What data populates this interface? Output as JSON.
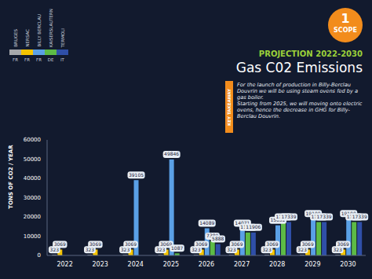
{
  "chart_data": {
    "type": "bar",
    "badge": {
      "label": "SCOPE",
      "number": "1"
    },
    "subtitle": "PROJECTION 2022-2030",
    "title": "Gas C02 Emissions",
    "annotation_tag": "KEY TAKEAWAY",
    "annotation": [
      "For the launch of production in Billy-Berclau Douvrin we will be using steam ovens fed by a gas boiler.",
      "Starting from 2025, we will moving onto electric ovens, hence the decrease in GHG for Billy-Berclau Douvrin."
    ],
    "y_label": "TONS OF CO2 / YEAR",
    "categories": [
      "2022",
      "2023",
      "2024",
      "2025",
      "2026",
      "2027",
      "2028",
      "2029",
      "2030"
    ],
    "series": [
      {
        "name": "BRUGES",
        "country": "FR",
        "color": "#a7a9ac",
        "values": [
          323,
          323,
          323,
          323,
          323,
          323,
          323,
          323,
          323
        ]
      },
      {
        "name": "NERSAC",
        "country": "FR",
        "color": "#f5c400",
        "values": [
          3069,
          3069,
          3069,
          3069,
          3069,
          3069,
          3069,
          3069,
          3069
        ]
      },
      {
        "name": "BILLY BERCLAU",
        "country": "FR",
        "color": "#5aa0e6",
        "values": [
          null,
          null,
          39105,
          49846,
          14089,
          14071,
          15632,
          19100,
          19100
        ]
      },
      {
        "name": "KAISERSLAUTERN",
        "country": "DE",
        "color": "#5dbb46",
        "values": [
          null,
          null,
          null,
          1087,
          7380,
          11906,
          17339,
          17339,
          17339
        ]
      },
      {
        "name": "TERMOLI",
        "country": "IT",
        "color": "#2f4fa8",
        "values": [
          null,
          null,
          null,
          null,
          5888,
          11906,
          17339,
          17339,
          17339
        ]
      }
    ],
    "ylim": [
      0,
      60000
    ],
    "yticks": [
      0,
      10000,
      20000,
      30000,
      40000,
      50000,
      60000
    ],
    "grid": false,
    "data_labels": true,
    "legend": "top-left"
  }
}
